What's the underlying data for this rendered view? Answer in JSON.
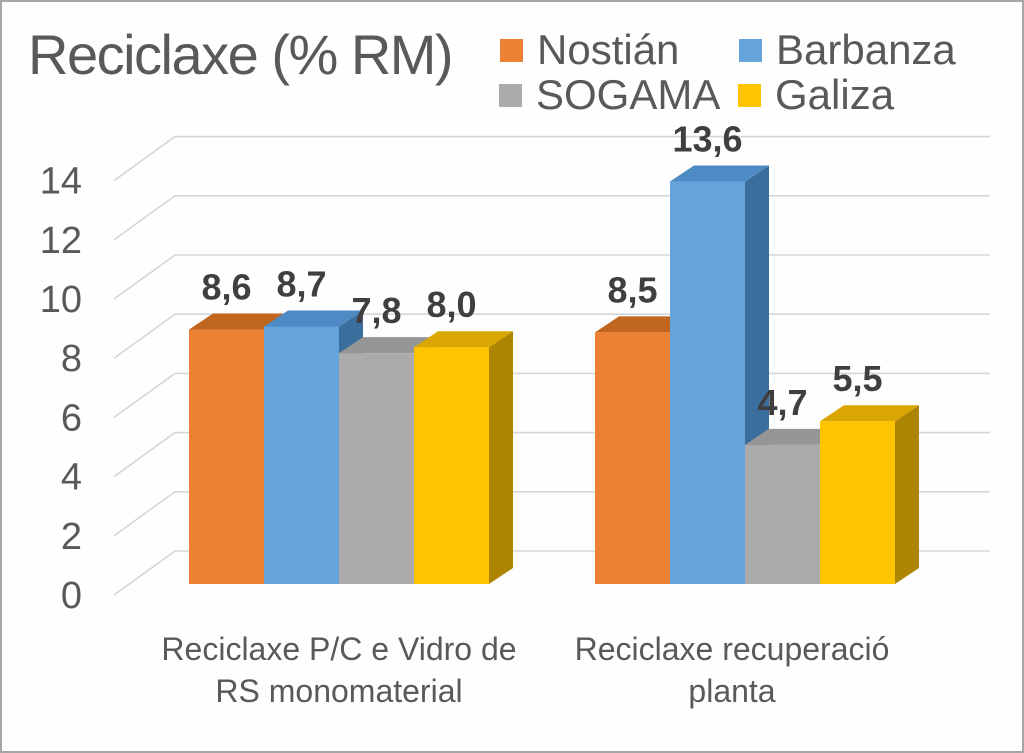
{
  "chart_data": {
    "type": "bar",
    "style": "3d-clustered-column",
    "title": "Reciclaxe (% RM)",
    "categories": [
      {
        "line1": "Reciclaxe P/C e Vidro de",
        "line2": "RS monomaterial"
      },
      {
        "line1": "Reciclaxe recuperació",
        "line2": "planta"
      }
    ],
    "series": [
      {
        "name": "Nostián",
        "values": [
          8.6,
          8.5
        ],
        "labels": [
          "8,6",
          "8,5"
        ],
        "color": "#ED8133",
        "color_top": "#C0661E",
        "color_side": "#9C5517"
      },
      {
        "name": "Barbanza",
        "values": [
          8.7,
          13.6
        ],
        "labels": [
          "8,7",
          "13,6"
        ],
        "color": "#65A3DB",
        "color_top": "#4E8AC4",
        "color_side": "#3A6E9C"
      },
      {
        "name": "SOGAMA",
        "values": [
          7.8,
          4.7
        ],
        "labels": [
          "7,8",
          "4,7"
        ],
        "color": "#ABABAB",
        "color_top": "#969696",
        "color_side": "#808080"
      },
      {
        "name": "Galiza",
        "values": [
          8.0,
          5.5
        ],
        "labels": [
          "8,0",
          "5,5"
        ],
        "color": "#FFC400",
        "color_top": "#D9A602",
        "color_side": "#AD8503"
      }
    ],
    "y_axis": {
      "min": 0,
      "max": 14,
      "step": 2,
      "ticks": [
        "0",
        "2",
        "4",
        "6",
        "8",
        "10",
        "12",
        "14"
      ]
    },
    "grid": true,
    "legend_position": "top-right",
    "decimal_separator": ","
  },
  "colors": {
    "text": "#595959",
    "value_label": "#3F3F3F",
    "grid": "#D6D6D6",
    "border": "#A6A6A6",
    "background": "#FEFEFE"
  }
}
